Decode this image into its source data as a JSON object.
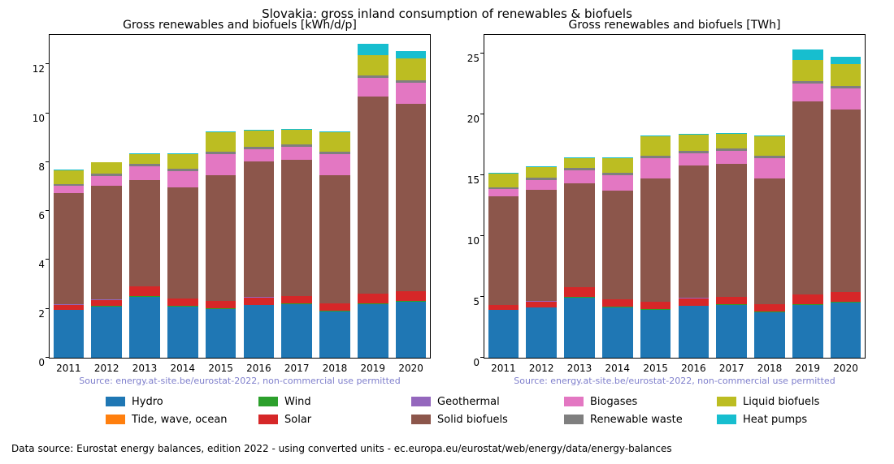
{
  "suptitle": "Slovakia: gross inland consumption of renewables & biofuels",
  "footer": "Data source: Eurostat energy balances, edition 2022 - using converted units - ec.europa.eu/eurostat/web/energy/data/energy-balances",
  "source_note": "Source: energy.at-site.be/eurostat-2022, non-commercial use permitted",
  "source_note_color": "#7f7fcc",
  "categories": [
    "2011",
    "2012",
    "2013",
    "2014",
    "2015",
    "2016",
    "2017",
    "2018",
    "2019",
    "2020"
  ],
  "series_order": [
    "Hydro",
    "Tide, wave, ocean",
    "Wind",
    "Solar",
    "Geothermal",
    "Solid biofuels",
    "Biogases",
    "Renewable waste",
    "Liquid biofuels",
    "Heat pumps"
  ],
  "colors": {
    "Hydro": "#1f77b4",
    "Tide, wave, ocean": "#ff7f0e",
    "Wind": "#2ca02c",
    "Solar": "#d62728",
    "Geothermal": "#9467bd",
    "Solid biofuels": "#8c564b",
    "Biogases": "#e377c2",
    "Renewable waste": "#7f7f7f",
    "Liquid biofuels": "#bcbd22",
    "Heat pumps": "#17becf"
  },
  "legend_cols": 5,
  "legend_fontsize": 13,
  "left": {
    "title": "Gross renewables and biofuels [kWh/d/p]",
    "ylim": [
      0,
      13.2
    ],
    "yticks": [
      0,
      2,
      4,
      6,
      8,
      10,
      12
    ],
    "bar_width": 0.8,
    "data": {
      "Hydro": [
        1.95,
        2.1,
        2.5,
        2.1,
        2.0,
        2.15,
        2.2,
        1.9,
        2.2,
        2.3
      ],
      "Tide, wave, ocean": [
        0,
        0,
        0,
        0,
        0,
        0,
        0,
        0,
        0,
        0
      ],
      "Wind": [
        0.01,
        0.01,
        0.01,
        0.01,
        0.01,
        0.01,
        0.01,
        0.01,
        0.01,
        0.01
      ],
      "Solar": [
        0.2,
        0.25,
        0.4,
        0.3,
        0.3,
        0.3,
        0.3,
        0.3,
        0.4,
        0.4
      ],
      "Geothermal": [
        0.02,
        0.02,
        0.02,
        0.02,
        0.02,
        0.02,
        0.02,
        0.02,
        0.02,
        0.02
      ],
      "Solid biofuels": [
        4.55,
        4.65,
        4.35,
        4.55,
        5.15,
        5.55,
        5.55,
        5.25,
        8.05,
        7.65
      ],
      "Biogases": [
        0.3,
        0.4,
        0.55,
        0.65,
        0.85,
        0.5,
        0.55,
        0.85,
        0.75,
        0.85
      ],
      "Renewable waste": [
        0.08,
        0.1,
        0.1,
        0.1,
        0.1,
        0.1,
        0.1,
        0.1,
        0.1,
        0.1
      ],
      "Liquid biofuels": [
        0.55,
        0.45,
        0.4,
        0.6,
        0.8,
        0.65,
        0.6,
        0.8,
        0.85,
        0.9
      ],
      "Heat pumps": [
        0.03,
        0.03,
        0.03,
        0.03,
        0.03,
        0.03,
        0.03,
        0.03,
        0.45,
        0.3
      ]
    }
  },
  "right": {
    "title": "Gross renewables and biofuels [TWh]",
    "ylim": [
      0,
      26.5
    ],
    "yticks": [
      0,
      5,
      10,
      15,
      20,
      25
    ],
    "bar_width": 0.8,
    "data": {
      "Hydro": [
        3.9,
        4.1,
        4.95,
        4.15,
        3.95,
        4.25,
        4.35,
        3.75,
        4.35,
        4.55
      ],
      "Tide, wave, ocean": [
        0,
        0,
        0,
        0,
        0,
        0,
        0,
        0,
        0,
        0
      ],
      "Wind": [
        0.02,
        0.02,
        0.02,
        0.02,
        0.02,
        0.02,
        0.02,
        0.02,
        0.02,
        0.02
      ],
      "Solar": [
        0.4,
        0.5,
        0.8,
        0.6,
        0.6,
        0.6,
        0.6,
        0.6,
        0.8,
        0.8
      ],
      "Geothermal": [
        0.04,
        0.04,
        0.04,
        0.04,
        0.04,
        0.04,
        0.04,
        0.04,
        0.04,
        0.04
      ],
      "Solid biofuels": [
        8.9,
        9.1,
        8.5,
        8.9,
        10.1,
        10.9,
        10.9,
        10.3,
        15.8,
        15.0
      ],
      "Biogases": [
        0.6,
        0.8,
        1.1,
        1.3,
        1.7,
        1.0,
        1.1,
        1.7,
        1.5,
        1.7
      ],
      "Renewable waste": [
        0.16,
        0.2,
        0.2,
        0.2,
        0.2,
        0.2,
        0.2,
        0.2,
        0.2,
        0.2
      ],
      "Liquid biofuels": [
        1.1,
        0.9,
        0.8,
        1.2,
        1.6,
        1.3,
        1.2,
        1.6,
        1.7,
        1.8
      ],
      "Heat pumps": [
        0.06,
        0.06,
        0.06,
        0.06,
        0.06,
        0.06,
        0.06,
        0.06,
        0.9,
        0.6
      ]
    }
  },
  "typography": {
    "suptitle_fontsize": 15,
    "subtitle_fontsize": 14,
    "tick_fontsize": 12,
    "footer_fontsize": 12
  },
  "background_color": "#ffffff"
}
